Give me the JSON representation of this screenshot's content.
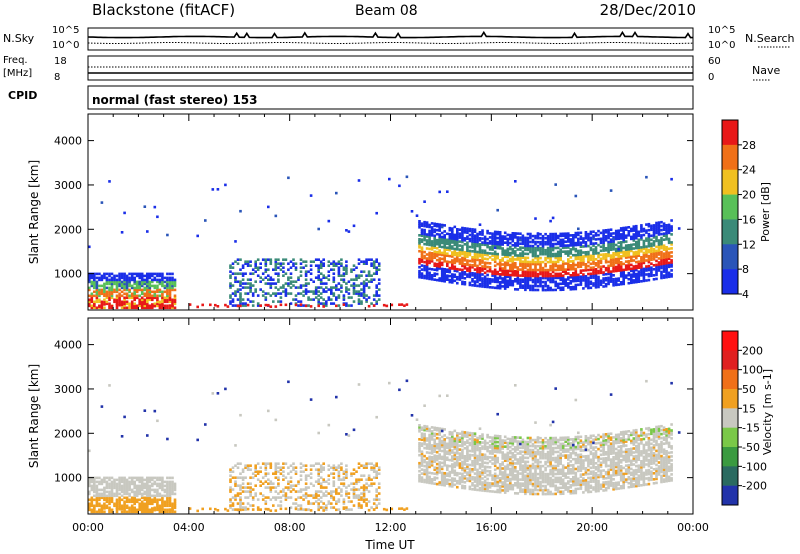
{
  "header": {
    "title": "Blackstone (fitACF)",
    "beam": "Beam 08",
    "date": "28/Dec/2010"
  },
  "nsky_panel": {
    "left_label": "N.Sky",
    "right_label": "N.Search",
    "left_ticks": [
      "10^5",
      "10^0"
    ],
    "right_ticks": [
      "10^5",
      "10^0"
    ]
  },
  "freq_panel": {
    "left_label_1": "Freq.",
    "left_label_2": "[MHz]",
    "right_label": "Nave",
    "left_ticks": [
      "18",
      "8"
    ],
    "right_ticks": [
      "60",
      "0"
    ]
  },
  "cpid_panel": {
    "label": "CPID",
    "text": "normal (fast stereo) 153"
  },
  "chart_data": [
    {
      "type": "heatmap",
      "quantity": "Power",
      "ylabel": "Slant Range [km]",
      "xlabel": "",
      "yticks": [
        1000,
        2000,
        3000,
        4000
      ],
      "ylim": [
        180,
        4600
      ],
      "xlim": [
        0,
        24
      ],
      "colorbar": {
        "label": "Power [dB]",
        "ticks": [
          "4",
          "8",
          "12",
          "16",
          "20",
          "24",
          "28"
        ],
        "colors": [
          "#1a2ee8",
          "#2a55b8",
          "#3a8a78",
          "#58c058",
          "#f0c020",
          "#f07018",
          "#e81818"
        ]
      }
    },
    {
      "type": "heatmap",
      "quantity": "Velocity",
      "ylabel": "Slant Range [km]",
      "xlabel": "Time UT",
      "yticks": [
        1000,
        2000,
        3000,
        4000
      ],
      "ylim": [
        180,
        4600
      ],
      "xlim": [
        0,
        24
      ],
      "xtick_labels": [
        "00:00",
        "04:00",
        "08:00",
        "12:00",
        "16:00",
        "20:00",
        "00:00"
      ],
      "colorbar": {
        "label": "Velocity [m s-1]",
        "ticks": [
          "200",
          "100",
          "50",
          "15",
          "-15",
          "-50",
          "-100",
          "-200"
        ],
        "colors": [
          "#2233aa",
          "#2a6a60",
          "#3a9a40",
          "#7ac848",
          "#c8c8c0",
          "#f0a020",
          "#f07018",
          "#e02020",
          "#ff1010"
        ]
      }
    }
  ]
}
